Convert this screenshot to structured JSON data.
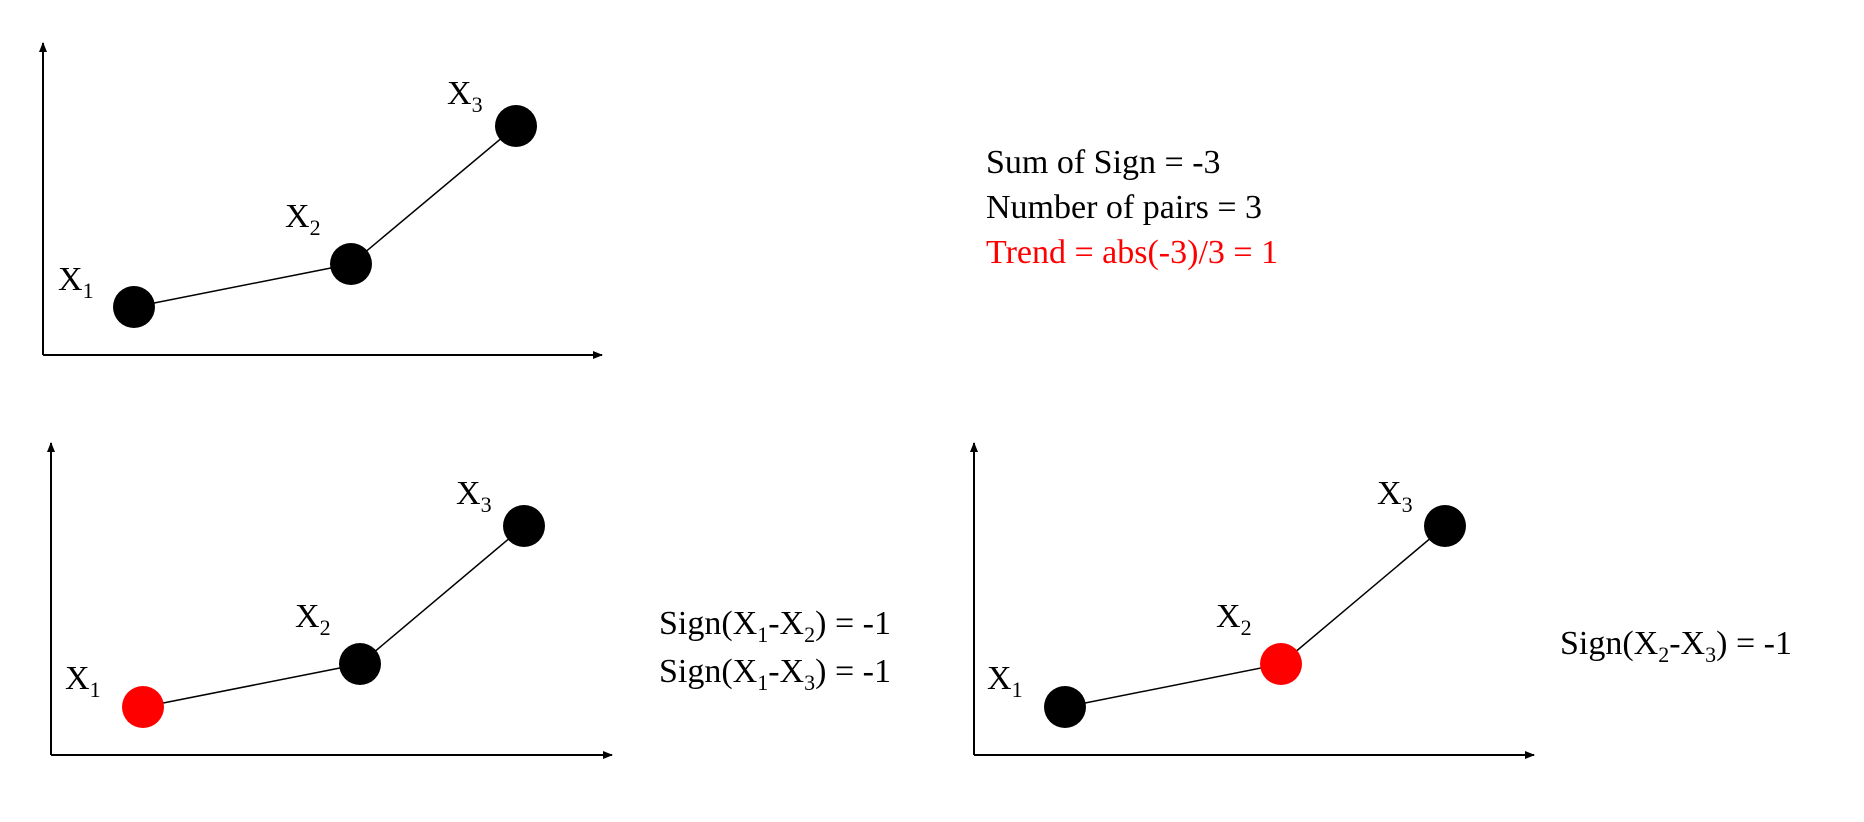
{
  "colors": {
    "default_point": "#000000",
    "highlight_point": "#ff0000",
    "highlight_text": "#ff0000",
    "axis": "#000000"
  },
  "plots": [
    {
      "points": [
        {
          "label_main": "X",
          "label_sub": "1",
          "highlight": false
        },
        {
          "label_main": "X",
          "label_sub": "2",
          "highlight": false
        },
        {
          "label_main": "X",
          "label_sub": "3",
          "highlight": false
        }
      ]
    },
    {
      "points": [
        {
          "label_main": "X",
          "label_sub": "1",
          "highlight": true
        },
        {
          "label_main": "X",
          "label_sub": "2",
          "highlight": false
        },
        {
          "label_main": "X",
          "label_sub": "3",
          "highlight": false
        }
      ]
    },
    {
      "points": [
        {
          "label_main": "X",
          "label_sub": "1",
          "highlight": false
        },
        {
          "label_main": "X",
          "label_sub": "2",
          "highlight": true
        },
        {
          "label_main": "X",
          "label_sub": "3",
          "highlight": false
        }
      ]
    }
  ],
  "summary": {
    "sum_of_sign": "Sum of Sign = -3",
    "number_of_pairs": "Number of pairs = 3",
    "trend": "Trend = abs(-3)/3 = 1"
  },
  "sign_block_1": {
    "line1": {
      "p1": "Sign(X",
      "s1": "1",
      "p2": "-X",
      "s2": "2",
      "p3": ") = -1"
    },
    "line2": {
      "p1": "Sign(X",
      "s1": "1",
      "p2": "-X",
      "s2": "3",
      "p3": ") = -1"
    }
  },
  "sign_block_2": {
    "line1": {
      "p1": "Sign(X",
      "s1": "2",
      "p2": "-X",
      "s2": "3",
      "p3": ") = -1"
    }
  }
}
